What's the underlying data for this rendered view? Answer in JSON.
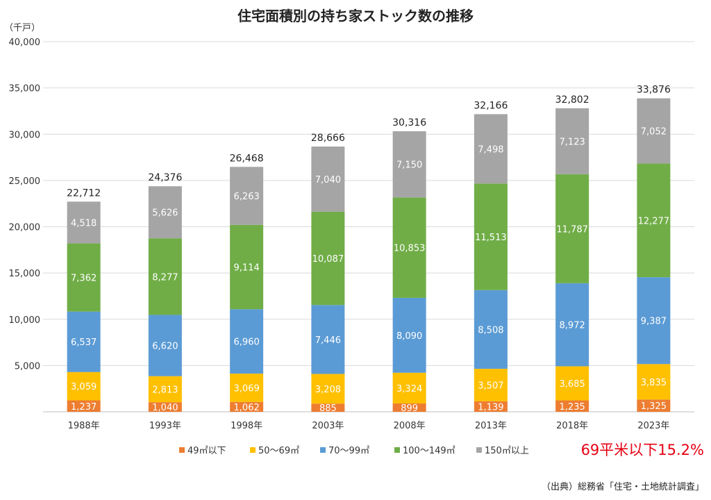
{
  "chart_data": {
    "type": "bar",
    "stacked": true,
    "title": "住宅面積別の持ち家ストック数の推移",
    "unit_label": "（千戸）",
    "ylim": [
      0,
      40000
    ],
    "yticks": [
      0,
      5000,
      10000,
      15000,
      20000,
      25000,
      30000,
      35000,
      40000
    ],
    "ytick_labels": [
      "",
      "5,000",
      "10,000",
      "15,000",
      "20,000",
      "25,000",
      "30,000",
      "35,000",
      "40,000"
    ],
    "grid": true,
    "legend_position": "bottom",
    "categories": [
      "1988年",
      "1993年",
      "1998年",
      "2003年",
      "2008年",
      "2013年",
      "2018年",
      "2023年"
    ],
    "series": [
      {
        "name": "49㎡以下",
        "color": "#ed7d31",
        "label_color": "#ffffff",
        "values": [
          1237,
          1040,
          1062,
          885,
          899,
          1139,
          1235,
          1325
        ],
        "labels": [
          "1,237",
          "1,040",
          "1,062",
          "885",
          "899",
          "1,139",
          "1,235",
          "1,325"
        ]
      },
      {
        "name": "50～69㎡",
        "color": "#ffc000",
        "label_color": "#ffffff",
        "values": [
          3059,
          2813,
          3069,
          3208,
          3324,
          3507,
          3685,
          3835
        ],
        "labels": [
          "3,059",
          "2,813",
          "3,069",
          "3,208",
          "3,324",
          "3,507",
          "3,685",
          "3,835"
        ]
      },
      {
        "name": "70～99㎡",
        "color": "#5b9bd5",
        "label_color": "#ffffff",
        "values": [
          6537,
          6620,
          6960,
          7446,
          8090,
          8508,
          8972,
          9387
        ],
        "labels": [
          "6,537",
          "6,620",
          "6,960",
          "7,446",
          "8,090",
          "8,508",
          "8,972",
          "9,387"
        ]
      },
      {
        "name": "100～149㎡",
        "color": "#70ad47",
        "label_color": "#ffffff",
        "values": [
          7362,
          8277,
          9114,
          10087,
          10853,
          11513,
          11787,
          12277
        ],
        "labels": [
          "7,362",
          "8,277",
          "9,114",
          "10,087",
          "10,853",
          "11,513",
          "11,787",
          "12,277"
        ]
      },
      {
        "name": "150㎡以上",
        "color": "#a5a5a5",
        "label_color": "#ffffff",
        "values": [
          4518,
          5626,
          6263,
          7040,
          7150,
          7498,
          7123,
          7052
        ],
        "labels": [
          "4,518",
          "5,626",
          "6,263",
          "7,040",
          "7,150",
          "7,498",
          "7,123",
          "7,052"
        ]
      }
    ],
    "totals": [
      22712,
      24376,
      26468,
      28666,
      30316,
      32166,
      32802,
      33876
    ],
    "total_labels": [
      "22,712",
      "24,376",
      "26,468",
      "28,666",
      "30,316",
      "32,166",
      "32,802",
      "33,876"
    ],
    "annotation": "69平米以下15.2%",
    "annotation_color": "#e60012",
    "source": "（出典）総務省「住宅・土地統計調査」"
  }
}
